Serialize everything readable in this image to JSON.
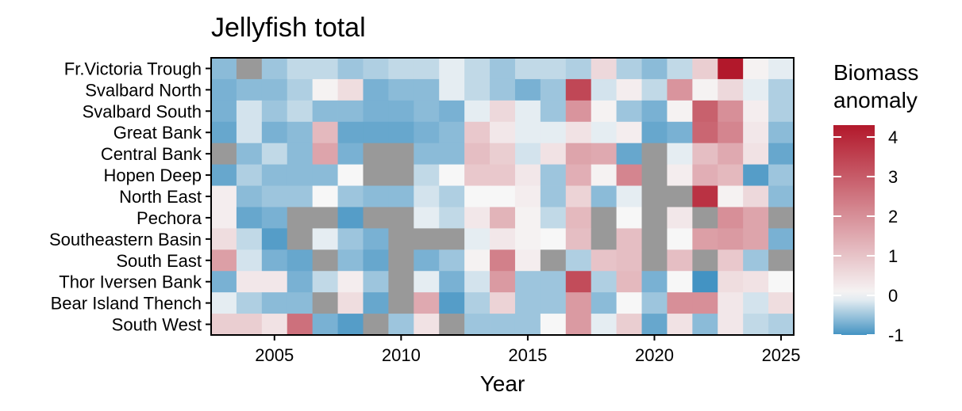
{
  "chart_data": {
    "type": "heatmap",
    "title": "Jellyfish total",
    "xlabel": "Year",
    "ylabel": "",
    "x_ticks": [
      2005,
      2010,
      2015,
      2020,
      2025
    ],
    "x_range": [
      2002.5,
      2025.5
    ],
    "years": [
      2003,
      2004,
      2005,
      2006,
      2007,
      2008,
      2009,
      2010,
      2011,
      2012,
      2013,
      2014,
      2015,
      2016,
      2017,
      2018,
      2019,
      2020,
      2021,
      2022,
      2023,
      2024,
      2025
    ],
    "regions": [
      "Fr.Victoria Trough",
      "Svalbard North",
      "Svalbard South",
      "Great Bank",
      "Central Bank",
      "Hopen Deep",
      "North East",
      "Pechora",
      "Southeastern Basin",
      "South East",
      "Thor Iversen Bank",
      "Bear Island Thench",
      "South West"
    ],
    "values": [
      [
        -0.6,
        null,
        -0.5,
        -0.3,
        -0.3,
        -0.5,
        -0.4,
        -0.3,
        -0.3,
        -0.1,
        -0.3,
        -0.5,
        -0.3,
        -0.3,
        -0.4,
        0.6,
        -0.4,
        -0.6,
        -0.3,
        0.8,
        4.3,
        0.1,
        -0.1
      ],
      [
        -0.7,
        -0.6,
        -0.6,
        -0.4,
        0.1,
        0.5,
        -0.7,
        -0.6,
        -0.6,
        -0.1,
        -0.3,
        -0.5,
        -0.7,
        -0.5,
        3.4,
        -0.2,
        0.2,
        -0.3,
        1.9,
        0.1,
        0.6,
        -0.1,
        -0.4
      ],
      [
        -0.7,
        -0.2,
        -0.5,
        -0.3,
        -0.6,
        -0.6,
        -0.7,
        -0.7,
        -0.6,
        -0.7,
        -0.1,
        0.6,
        -0.1,
        -0.5,
        1.9,
        0.1,
        -0.5,
        -0.7,
        0.1,
        2.9,
        2.0,
        0.2,
        -0.4
      ],
      [
        -0.8,
        -0.2,
        -0.7,
        -0.6,
        1.2,
        -0.8,
        -0.8,
        -0.8,
        -0.7,
        -0.6,
        0.9,
        0.3,
        -0.1,
        -0.1,
        0.4,
        -0.1,
        0.2,
        -0.8,
        -0.7,
        2.8,
        2.2,
        0.3,
        -0.6
      ],
      [
        null,
        -0.6,
        -0.3,
        -0.6,
        1.6,
        -0.7,
        null,
        null,
        -0.6,
        -0.6,
        1.1,
        0.8,
        -0.2,
        0.4,
        1.6,
        1.5,
        -0.8,
        null,
        -0.1,
        1.1,
        1.5,
        0.4,
        -0.8
      ],
      [
        -0.8,
        -0.4,
        -0.6,
        -0.6,
        -0.6,
        0.0,
        null,
        null,
        -0.3,
        0.0,
        0.9,
        0.9,
        0.3,
        -0.5,
        1.4,
        0.1,
        2.2,
        null,
        0.2,
        1.4,
        1.2,
        -0.9,
        -0.5
      ],
      [
        0.2,
        -0.6,
        -0.5,
        -0.5,
        0.0,
        -0.5,
        -0.6,
        -0.6,
        -0.2,
        -0.4,
        0.0,
        0.0,
        0.2,
        -0.5,
        0.7,
        -0.6,
        -0.1,
        null,
        null,
        3.8,
        0.1,
        0.6,
        -0.6
      ],
      [
        0.2,
        -0.8,
        -0.7,
        null,
        null,
        -0.9,
        null,
        null,
        -0.1,
        -0.3,
        0.3,
        1.3,
        0.1,
        -0.3,
        1.2,
        null,
        0.0,
        null,
        0.3,
        null,
        2.0,
        1.6,
        null
      ],
      [
        0.5,
        -0.3,
        -0.9,
        null,
        -0.1,
        -0.5,
        -0.7,
        null,
        null,
        null,
        -0.1,
        0.3,
        0.1,
        0.0,
        1.1,
        null,
        1.1,
        null,
        0.0,
        1.7,
        1.8,
        1.6,
        -0.7
      ],
      [
        1.7,
        -0.2,
        -0.7,
        -0.8,
        null,
        -0.6,
        -0.8,
        null,
        -0.7,
        -0.5,
        0.1,
        2.3,
        0.2,
        null,
        -0.4,
        1.0,
        1.1,
        null,
        1.1,
        null,
        0.9,
        -0.5,
        null
      ],
      [
        -0.7,
        0.3,
        0.3,
        -0.7,
        -0.3,
        0.2,
        -0.5,
        null,
        -0.1,
        -0.7,
        -0.2,
        1.8,
        -0.5,
        -0.5,
        3.3,
        -0.4,
        1.2,
        -0.7,
        0.0,
        -1.0,
        0.5,
        0.4,
        0.0
      ],
      [
        -0.1,
        -0.4,
        -0.6,
        -0.6,
        null,
        0.5,
        -0.8,
        null,
        1.5,
        -0.9,
        -0.4,
        0.7,
        -0.5,
        -0.5,
        1.8,
        -0.6,
        0.0,
        -0.5,
        2.0,
        2.0,
        0.3,
        -0.2,
        0.5
      ],
      [
        0.8,
        0.8,
        0.4,
        2.6,
        -0.7,
        -0.9,
        null,
        -0.5,
        0.4,
        null,
        -0.5,
        -0.5,
        -0.5,
        0.0,
        1.8,
        -0.1,
        0.8,
        -0.8,
        0.4,
        -0.6,
        0.3,
        -0.3,
        -0.4
      ]
    ],
    "na_color": "#999999",
    "colorscale": {
      "min": -1,
      "mid": 0,
      "max": 4.3,
      "low_color": "#4393C3",
      "mid_color": "#F7F7F7",
      "high_color": "#B2182B"
    },
    "legend": {
      "title_lines": [
        "Biomass",
        "anomaly"
      ],
      "ticks": [
        -1,
        0,
        1,
        2,
        3,
        4
      ],
      "placement": "right"
    },
    "grid": false
  }
}
